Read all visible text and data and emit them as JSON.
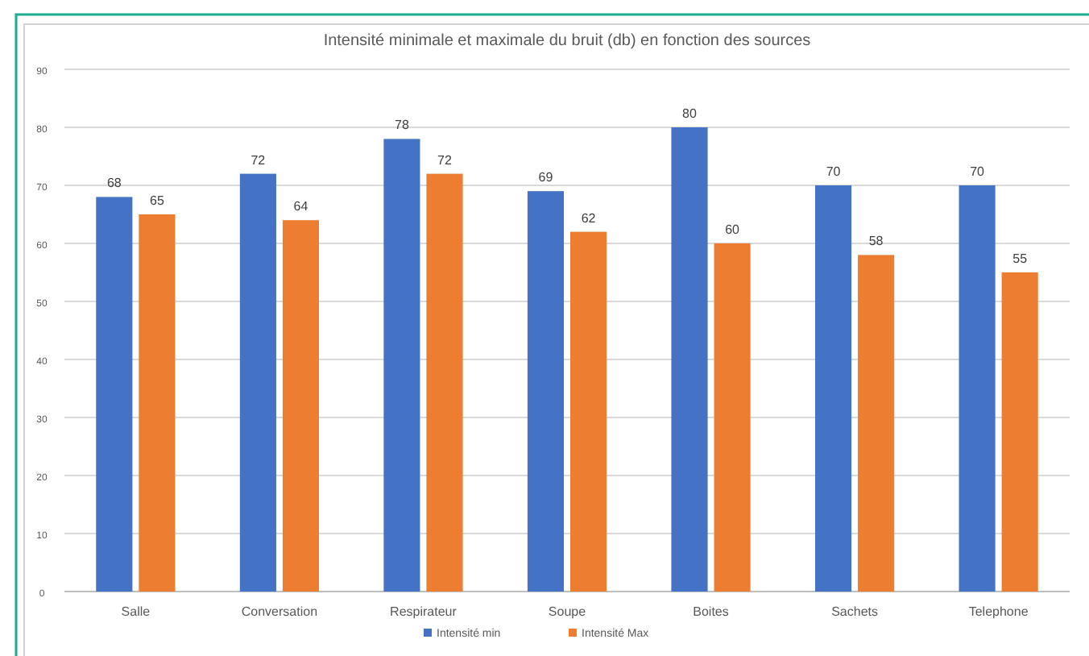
{
  "chart_data": {
    "type": "bar",
    "title": "Intensité minimale et maximale du bruit (db) en fonction des sources",
    "categories": [
      "Salle",
      "Conversation",
      "Respirateur",
      "Soupe",
      "Boites",
      "Sachets",
      "Telephone"
    ],
    "series": [
      {
        "name": "Intensité min",
        "color": "#4472c4",
        "values": [
          68,
          72,
          78,
          69,
          80,
          70,
          70
        ]
      },
      {
        "name": "Intensité Max",
        "color": "#ed7d31",
        "values": [
          65,
          64,
          72,
          62,
          60,
          58,
          55
        ]
      }
    ],
    "ylim": [
      0,
      90
    ],
    "yticks": [
      0,
      10,
      20,
      30,
      40,
      50,
      60,
      70,
      80,
      90
    ],
    "grid": "y",
    "legend": "bottom",
    "data_labels": true
  }
}
